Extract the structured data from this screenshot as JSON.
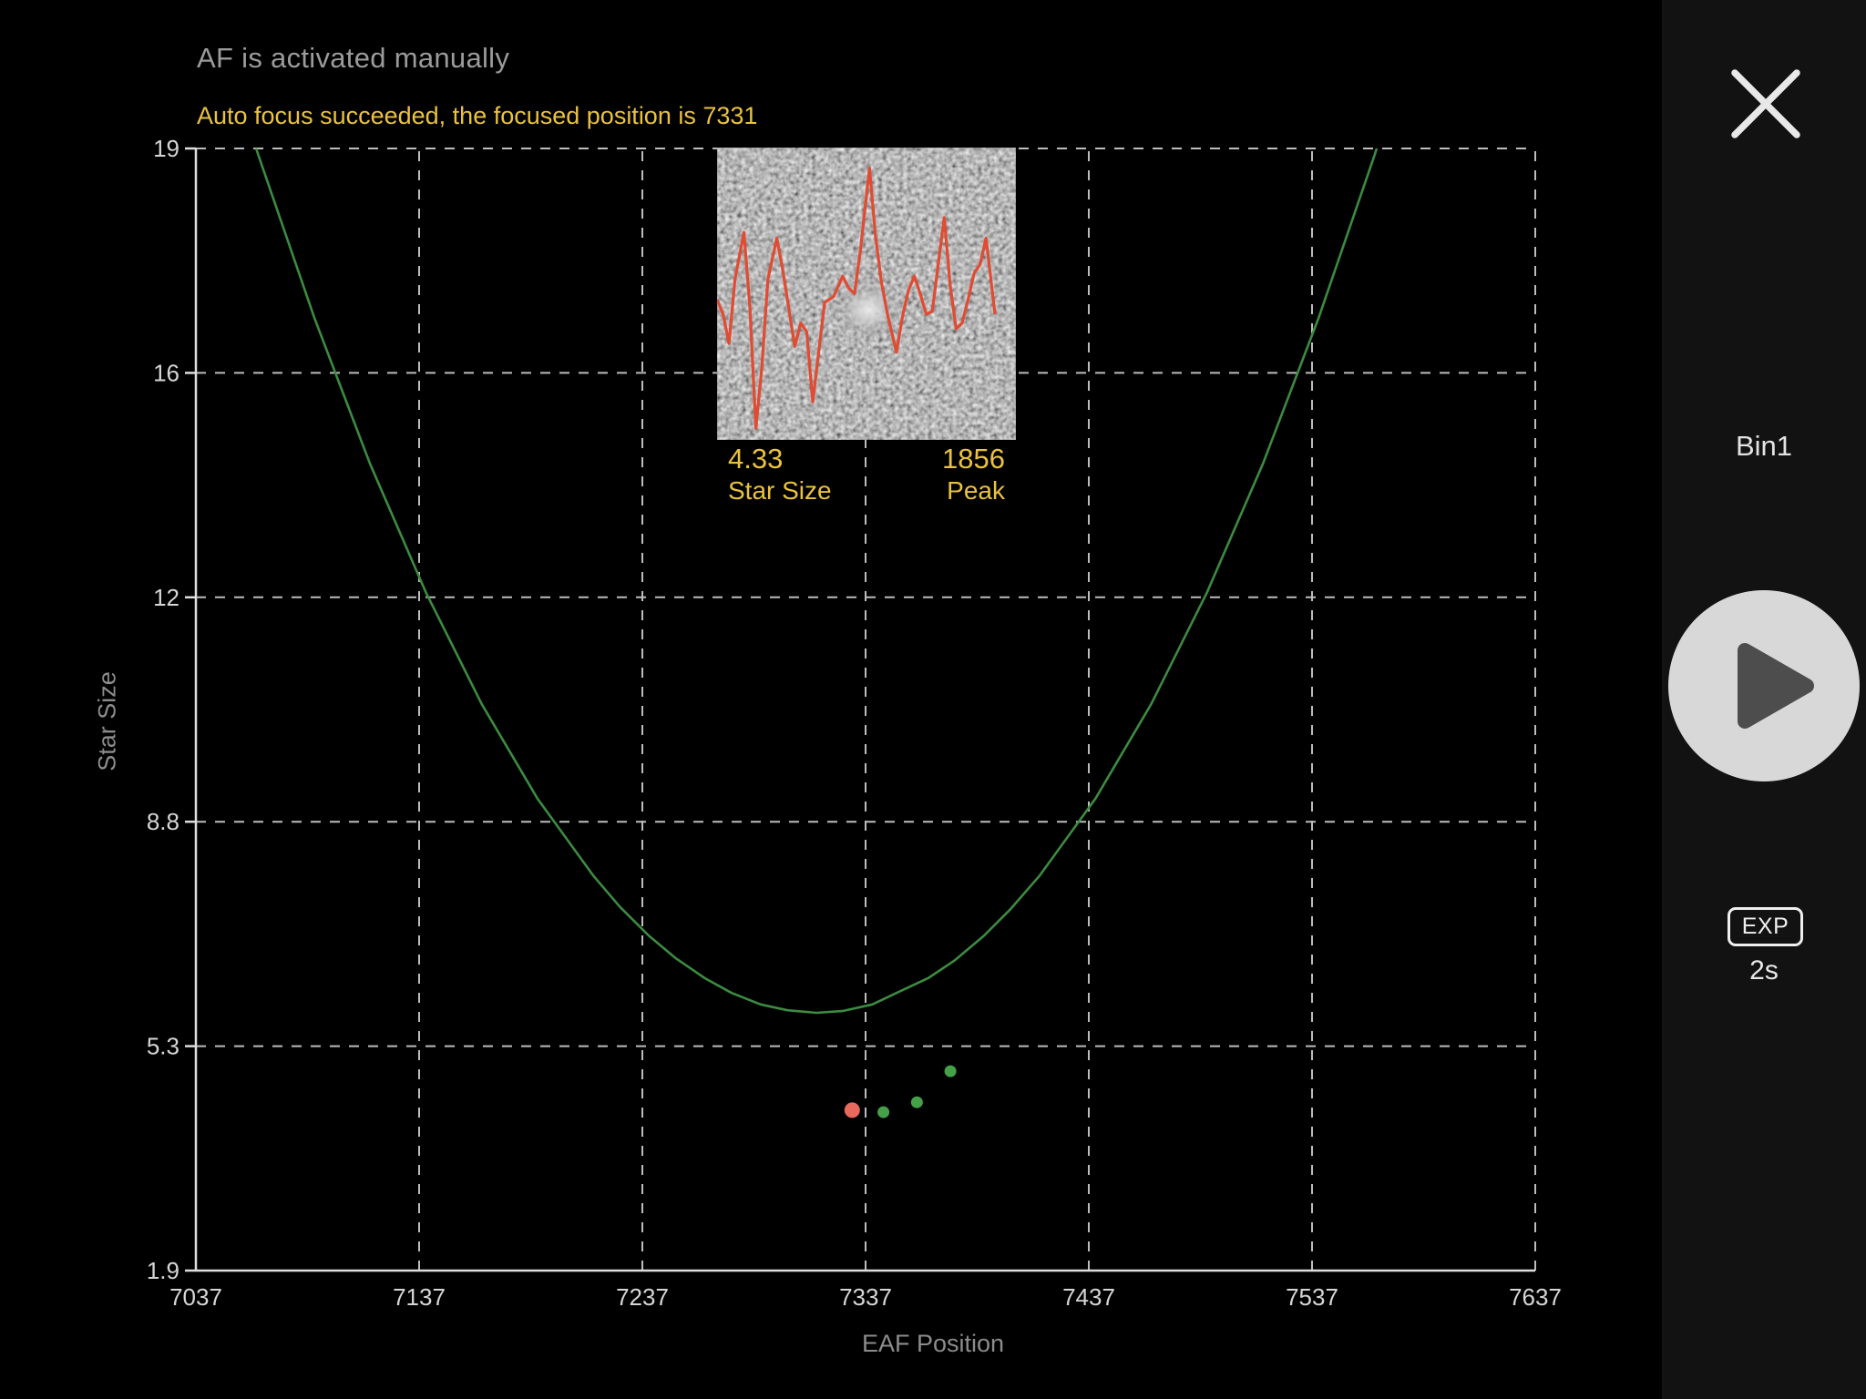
{
  "header": {
    "status_line1": "AF is activated manually",
    "status_line2": "Auto focus succeeded, the focused position is 7331"
  },
  "chart_data": {
    "type": "scatter",
    "title": "",
    "xlabel": "EAF Position",
    "ylabel": "Star Size",
    "x_ticks": [
      7037,
      7137,
      7237,
      7337,
      7437,
      7537,
      7637
    ],
    "y_ticks": [
      1.9,
      5.3,
      8.8,
      12,
      16,
      19
    ],
    "y_ticks_nonlinear_even_spacing": true,
    "xlim": [
      7037,
      7637
    ],
    "grid": "dashed",
    "fit_curve": {
      "name": "autofocus V-curve fit",
      "color": "#3c8b40",
      "minimum": {
        "eaf": 7315,
        "star_size": 5.82
      },
      "points": [
        [
          7064,
          19
        ],
        [
          7065,
          18.91
        ],
        [
          7090,
          16.74
        ],
        [
          7115,
          14.38
        ],
        [
          7140,
          12.09
        ],
        [
          7165,
          10.48
        ],
        [
          7190,
          9.13
        ],
        [
          7215,
          7.96
        ],
        [
          7227,
          7.47
        ],
        [
          7240,
          7.02
        ],
        [
          7252,
          6.67
        ],
        [
          7265,
          6.36
        ],
        [
          7277,
          6.13
        ],
        [
          7290,
          5.95
        ],
        [
          7302,
          5.86
        ],
        [
          7315,
          5.82
        ],
        [
          7327,
          5.85
        ],
        [
          7340,
          5.95
        ],
        [
          7352,
          6.15
        ],
        [
          7365,
          6.36
        ],
        [
          7377,
          6.64
        ],
        [
          7390,
          7.02
        ],
        [
          7402,
          7.44
        ],
        [
          7415,
          7.96
        ],
        [
          7440,
          9.13
        ],
        [
          7465,
          10.48
        ],
        [
          7490,
          12.09
        ],
        [
          7515,
          14.38
        ],
        [
          7540,
          16.74
        ],
        [
          7565,
          18.91
        ],
        [
          7566,
          19
        ]
      ]
    },
    "measured_points": {
      "name": "sampled star sizes",
      "color": "#45a148",
      "points": [
        [
          7345,
          4.3
        ],
        [
          7360,
          4.45
        ],
        [
          7375,
          4.92
        ]
      ]
    },
    "focused_point": {
      "name": "focused position",
      "color": "#e9695c",
      "eaf": 7331,
      "star_size": 4.33
    }
  },
  "inset": {
    "star_size_value": "4.33",
    "star_size_label": "Star Size",
    "peak_value": "1856",
    "peak_label": "Peak",
    "profile_color": "#e04b32",
    "profile_points_pct": [
      [
        0,
        52
      ],
      [
        2,
        57
      ],
      [
        4,
        67
      ],
      [
        6,
        45
      ],
      [
        9,
        29
      ],
      [
        11,
        55
      ],
      [
        13,
        96
      ],
      [
        15,
        75
      ],
      [
        17,
        45
      ],
      [
        20,
        31
      ],
      [
        22,
        42
      ],
      [
        24,
        55
      ],
      [
        26,
        68
      ],
      [
        28,
        60
      ],
      [
        30,
        63
      ],
      [
        32,
        87
      ],
      [
        34,
        70
      ],
      [
        36,
        53
      ],
      [
        39,
        51
      ],
      [
        42,
        44
      ],
      [
        44,
        48
      ],
      [
        46,
        50
      ],
      [
        48,
        35
      ],
      [
        51,
        7
      ],
      [
        53,
        30
      ],
      [
        55,
        46
      ],
      [
        57,
        57
      ],
      [
        60,
        70
      ],
      [
        62,
        58
      ],
      [
        64,
        49
      ],
      [
        66,
        44
      ],
      [
        68,
        50
      ],
      [
        70,
        57
      ],
      [
        72,
        56
      ],
      [
        74,
        40
      ],
      [
        76,
        24
      ],
      [
        78,
        47
      ],
      [
        80,
        62
      ],
      [
        82,
        60
      ],
      [
        84,
        52
      ],
      [
        86,
        43
      ],
      [
        88,
        40
      ],
      [
        90,
        31
      ],
      [
        93,
        57
      ]
    ]
  },
  "sidebar": {
    "close_icon": "close-x",
    "bin_label": "Bin1",
    "play_icon": "play-triangle",
    "exp_button_label": "EXP",
    "exp_value": "2s"
  },
  "colors": {
    "background": "#000000",
    "sidebar_background": "#121212",
    "status_gray": "#9b9b9b",
    "accent_yellow": "#e9c23f",
    "curve_green": "#3c8b40",
    "point_green": "#45a148",
    "focused_red": "#e9695c",
    "grid_gray": "#bdbdbd",
    "axis_gray": "#dedede",
    "play_circle": "#d8d8d8",
    "play_triangle": "#4d4d4d"
  }
}
